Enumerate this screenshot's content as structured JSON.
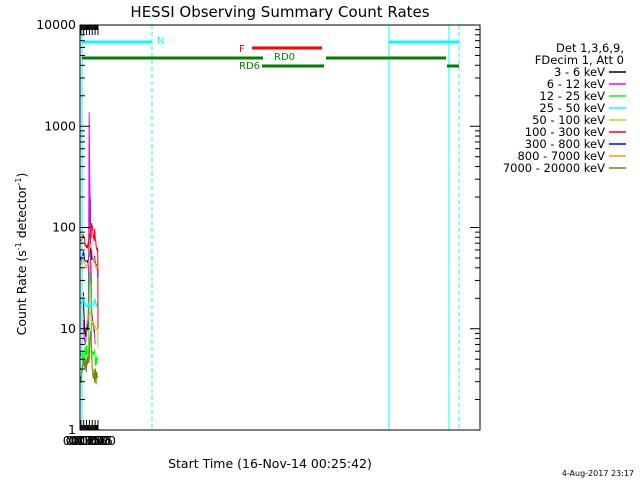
{
  "chart_data": {
    "type": "line",
    "title": "HESSI Observing Summary Count Rates",
    "xlabel": "Start Time (16-Nov-14 00:25:42)",
    "ylabel_main": "Count Rate (s",
    "ylabel_sup1": "-1",
    "ylabel_mid": " detector",
    "ylabel_sup2": "-1",
    "ylabel_end": ")",
    "scale_y": "log",
    "ylim": [
      1,
      10000
    ],
    "xlim_minutes": [
      25.7,
      2125.0
    ],
    "x_tick_labels": [
      "00:30",
      "00:45",
      "01:00",
      "01:15",
      "01:30",
      "01:45",
      "02:00"
    ],
    "y_tick_labels": [
      "1",
      "10",
      "100",
      "1000",
      "10000"
    ],
    "legend_header": [
      "Det 1,3,6,9,",
      "FDecim 1, Att 0"
    ],
    "footer_date": "4-Aug-2017 23:17",
    "status_bars": {
      "night_label": "N",
      "flare_label": "F",
      "rd0_label": "RD0",
      "rd6_label": "RD6"
    },
    "series": [
      {
        "name": "3 - 6 keV",
        "color": "#000000",
        "x": [
          "00:44",
          "00:46",
          "00:50",
          "00:55",
          "01:00",
          "01:05",
          "01:08",
          "01:11",
          "01:13",
          "01:14",
          "01:15",
          "01:16",
          "01:17",
          "01:18",
          "01:19",
          "01:20",
          "01:21",
          "01:22",
          "01:24",
          "01:26",
          "01:28",
          "01:30",
          "01:34",
          "01:38",
          "01:42"
        ],
        "y": [
          22,
          14,
          9,
          9,
          9.5,
          9.5,
          10.5,
          12,
          220,
          580,
          450,
          320,
          230,
          170,
          190,
          140,
          90,
          50,
          28,
          18,
          13,
          12,
          11,
          10,
          10
        ]
      },
      {
        "name": "6 - 12 keV",
        "color": "#ff00ff",
        "x": [
          "00:44",
          "00:46",
          "00:50",
          "00:55",
          "01:00",
          "01:05",
          "01:08",
          "01:11",
          "01:13",
          "01:14",
          "01:15",
          "01:16",
          "01:17",
          "01:18",
          "01:19",
          "01:20",
          "01:21",
          "01:22",
          "01:24",
          "01:26",
          "01:28",
          "01:30",
          "01:34",
          "01:38",
          "01:42",
          "01:45"
        ],
        "y": [
          12,
          8.5,
          7.5,
          7.5,
          9,
          12,
          14,
          20,
          700,
          1400,
          700,
          230,
          170,
          130,
          100,
          85,
          60,
          30,
          20,
          15,
          13,
          12,
          11,
          10,
          9.5,
          7
        ]
      },
      {
        "name": "12 - 25 keV",
        "color": "#00ff00",
        "x": [
          "00:29",
          "00:35",
          "00:40",
          "00:45",
          "00:50",
          "00:55",
          "01:00",
          "01:05",
          "01:10",
          "01:13",
          "01:15",
          "01:20",
          "01:25",
          "01:26",
          "01:30",
          "01:35",
          "01:40",
          "01:45",
          "01:50",
          "01:55",
          "01:59"
        ],
        "y": [
          5,
          5,
          5,
          5,
          5.5,
          6,
          6,
          6,
          6,
          13,
          30,
          28,
          22,
          5.5,
          5.5,
          5.5,
          5.5,
          5,
          5,
          5,
          5
        ]
      },
      {
        "name": "25 - 50 keV",
        "color": "#00ffff",
        "x": [
          "00:29",
          "00:35",
          "00:40",
          "00:44",
          "00:47",
          "00:50",
          "00:55",
          "01:00",
          "01:05",
          "01:10",
          "01:13",
          "01:18",
          "01:22",
          "01:25",
          "01:30",
          "01:35",
          "01:40",
          "01:43",
          "01:47",
          "01:50",
          "01:55",
          "01:59"
        ],
        "y": [
          18,
          18,
          19,
          22,
          18,
          17,
          17,
          17,
          17,
          17,
          18,
          17.5,
          17,
          17,
          17,
          18,
          18,
          20,
          18,
          17,
          17,
          17
        ]
      },
      {
        "name": "50 - 100 keV",
        "color": "#cccc00",
        "x": [
          "01:13",
          "01:15",
          "01:18",
          "01:21",
          "01:24",
          "01:26",
          "01:30",
          "01:35",
          "01:40",
          "01:45",
          "01:50",
          "01:55",
          "01:59",
          "02:00"
        ],
        "y": [
          13,
          14.5,
          14.5,
          14,
          13,
          12,
          11.5,
          11,
          11,
          10.5,
          10,
          10,
          9.5,
          6.5
        ]
      },
      {
        "name": "100 - 300 keV",
        "color": "#ff0000",
        "x": [
          "00:29",
          "00:35",
          "00:40",
          "00:44",
          "00:47",
          "00:50",
          "00:55",
          "01:00",
          "01:05",
          "01:10",
          "01:13",
          "01:16",
          "01:20",
          "01:24",
          "01:26",
          "01:30",
          "01:35",
          "01:40",
          "01:43",
          "01:46",
          "01:50",
          "01:55",
          "01:59",
          "02:00"
        ],
        "y": [
          70,
          75,
          82,
          88,
          78,
          72,
          68,
          65,
          64,
          66,
          75,
          82,
          82,
          78,
          110,
          100,
          85,
          75,
          95,
          75,
          68,
          62,
          58,
          10
        ]
      },
      {
        "name": "300 - 800 keV",
        "color": "#0000ff",
        "x": [
          "00:29",
          "00:35",
          "00:40",
          "00:44",
          "00:47",
          "00:50",
          "00:55",
          "01:00",
          "01:05",
          "01:10",
          "01:13",
          "01:18",
          "01:24",
          "01:26",
          "01:30",
          "01:35",
          "01:40",
          "01:43",
          "01:46",
          "01:50",
          "01:55",
          "01:59",
          "02:00"
        ],
        "y": [
          48,
          50,
          53,
          56,
          53,
          50,
          48,
          47,
          47,
          48,
          53,
          58,
          60,
          50,
          50,
          48,
          46,
          52,
          45,
          42,
          40,
          38,
          32
        ]
      },
      {
        "name": "800 - 7000 keV",
        "color": "#ff9900",
        "x": [
          "00:29",
          "00:35",
          "00:40",
          "00:44",
          "00:47",
          "00:50",
          "00:55",
          "01:00",
          "01:05",
          "01:10",
          "01:13",
          "01:16",
          "01:20",
          "01:24",
          "01:28",
          "01:32",
          "01:36",
          "01:40",
          "01:43",
          "01:46",
          "01:50",
          "01:55",
          "01:59"
        ],
        "y": [
          42,
          44,
          46,
          48,
          45,
          43,
          42,
          42,
          42,
          44,
          52,
          62,
          65,
          62,
          57,
          52,
          48,
          45,
          48,
          44,
          42,
          40,
          39
        ]
      },
      {
        "name": "7000 - 20000 keV",
        "color": "#808000",
        "x": [
          "00:29",
          "00:35",
          "00:40",
          "00:45",
          "00:50",
          "00:55",
          "01:00",
          "01:05",
          "01:10",
          "01:13",
          "01:17",
          "01:22",
          "01:26",
          "01:30",
          "01:35",
          "01:40",
          "01:45",
          "01:50",
          "01:55",
          "01:59"
        ],
        "y": [
          3.5,
          3.6,
          3.8,
          4.2,
          4.5,
          4.6,
          4.6,
          4.6,
          4.7,
          5.5,
          7.5,
          9,
          7,
          4.6,
          3.8,
          3.5,
          3.4,
          3.4,
          3.4,
          3.4
        ]
      }
    ]
  }
}
